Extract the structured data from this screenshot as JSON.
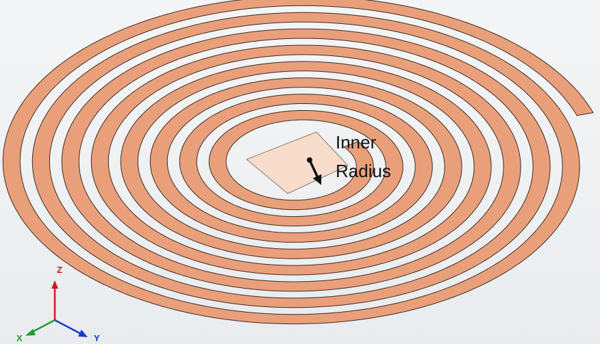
{
  "annotation": {
    "lines": [
      "Inner",
      "Radius"
    ]
  },
  "axes": {
    "z": "Z",
    "y": "Y",
    "x": "X"
  }
}
